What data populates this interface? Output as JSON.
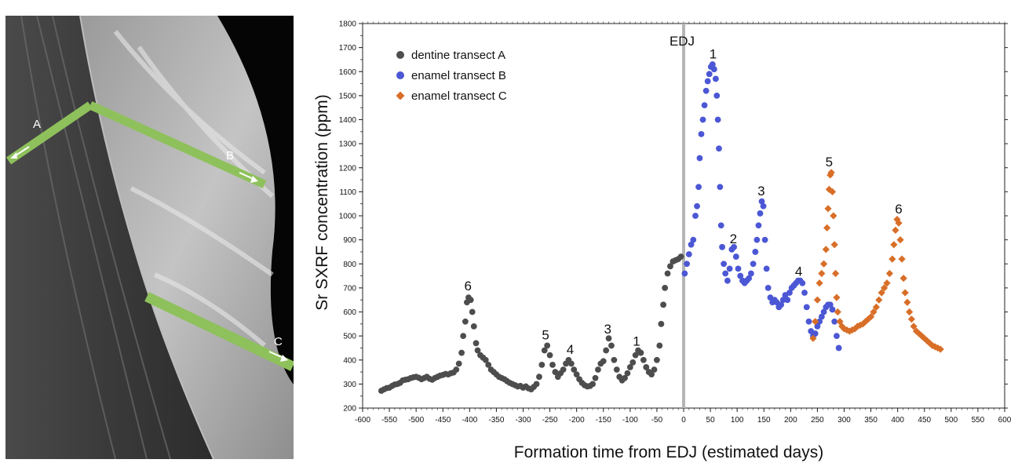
{
  "micrograph": {
    "transects": [
      {
        "label": "A"
      },
      {
        "label": "B"
      },
      {
        "label": "C"
      }
    ]
  },
  "chart_data": {
    "type": "scatter",
    "xlabel": "Formation time from EDJ (estimated days)",
    "ylabel": "Sr SXRF concentration (ppm)",
    "xlim": [
      -600,
      600
    ],
    "ylim": [
      200,
      1800
    ],
    "xticks": [
      -600,
      -550,
      -500,
      -450,
      -400,
      -350,
      -300,
      -250,
      -200,
      -150,
      -100,
      -50,
      0,
      50,
      100,
      150,
      200,
      250,
      300,
      350,
      400,
      450,
      500,
      550,
      600
    ],
    "yticks": [
      200,
      300,
      400,
      500,
      600,
      700,
      800,
      900,
      1000,
      1100,
      1200,
      1300,
      1400,
      1500,
      1600,
      1700,
      1800
    ],
    "grid": false,
    "legend_position": "top-left",
    "reference_line": {
      "x": 0,
      "label": "EDJ"
    },
    "series": [
      {
        "name": "dentine transect A",
        "marker": "circle",
        "color": "#4d4d4d",
        "points": [
          [
            -565,
            272
          ],
          [
            -560,
            278
          ],
          [
            -555,
            283
          ],
          [
            -550,
            285
          ],
          [
            -545,
            292
          ],
          [
            -540,
            298
          ],
          [
            -535,
            300
          ],
          [
            -530,
            305
          ],
          [
            -525,
            315
          ],
          [
            -520,
            318
          ],
          [
            -515,
            320
          ],
          [
            -510,
            325
          ],
          [
            -505,
            328
          ],
          [
            -500,
            330
          ],
          [
            -495,
            326
          ],
          [
            -490,
            320
          ],
          [
            -485,
            325
          ],
          [
            -480,
            330
          ],
          [
            -475,
            322
          ],
          [
            -470,
            318
          ],
          [
            -465,
            325
          ],
          [
            -460,
            330
          ],
          [
            -455,
            335
          ],
          [
            -450,
            338
          ],
          [
            -445,
            342
          ],
          [
            -440,
            340
          ],
          [
            -435,
            345
          ],
          [
            -430,
            348
          ],
          [
            -425,
            360
          ],
          [
            -420,
            385
          ],
          [
            -415,
            430
          ],
          [
            -412,
            500
          ],
          [
            -408,
            560
          ],
          [
            -405,
            640
          ],
          [
            -402,
            660
          ],
          [
            -398,
            650
          ],
          [
            -395,
            600
          ],
          [
            -392,
            540
          ],
          [
            -388,
            470
          ],
          [
            -385,
            440
          ],
          [
            -380,
            420
          ],
          [
            -375,
            410
          ],
          [
            -370,
            400
          ],
          [
            -365,
            380
          ],
          [
            -360,
            360
          ],
          [
            -355,
            350
          ],
          [
            -350,
            340
          ],
          [
            -345,
            330
          ],
          [
            -340,
            325
          ],
          [
            -335,
            320
          ],
          [
            -330,
            312
          ],
          [
            -325,
            305
          ],
          [
            -320,
            300
          ],
          [
            -315,
            295
          ],
          [
            -310,
            290
          ],
          [
            -305,
            292
          ],
          [
            -300,
            285
          ],
          [
            -295,
            290
          ],
          [
            -290,
            282
          ],
          [
            -285,
            278
          ],
          [
            -280,
            288
          ],
          [
            -275,
            300
          ],
          [
            -270,
            330
          ],
          [
            -265,
            380
          ],
          [
            -260,
            440
          ],
          [
            -255,
            460
          ],
          [
            -250,
            420
          ],
          [
            -245,
            380
          ],
          [
            -240,
            350
          ],
          [
            -235,
            330
          ],
          [
            -230,
            345
          ],
          [
            -225,
            360
          ],
          [
            -220,
            385
          ],
          [
            -215,
            400
          ],
          [
            -210,
            385
          ],
          [
            -205,
            360
          ],
          [
            -200,
            340
          ],
          [
            -195,
            320
          ],
          [
            -190,
            305
          ],
          [
            -185,
            295
          ],
          [
            -180,
            290
          ],
          [
            -175,
            292
          ],
          [
            -170,
            300
          ],
          [
            -165,
            325
          ],
          [
            -160,
            360
          ],
          [
            -155,
            385
          ],
          [
            -150,
            395
          ],
          [
            -145,
            440
          ],
          [
            -140,
            490
          ],
          [
            -135,
            460
          ],
          [
            -130,
            400
          ],
          [
            -125,
            360
          ],
          [
            -120,
            330
          ],
          [
            -115,
            315
          ],
          [
            -110,
            325
          ],
          [
            -105,
            345
          ],
          [
            -100,
            370
          ],
          [
            -95,
            390
          ],
          [
            -90,
            420
          ],
          [
            -85,
            440
          ],
          [
            -80,
            430
          ],
          [
            -75,
            400
          ],
          [
            -70,
            370
          ],
          [
            -65,
            350
          ],
          [
            -60,
            340
          ],
          [
            -55,
            360
          ],
          [
            -50,
            400
          ],
          [
            -45,
            460
          ],
          [
            -42,
            550
          ],
          [
            -38,
            630
          ],
          [
            -35,
            700
          ],
          [
            -30,
            760
          ],
          [
            -25,
            790
          ],
          [
            -20,
            810
          ],
          [
            -15,
            815
          ],
          [
            -10,
            820
          ],
          [
            -5,
            830
          ]
        ]
      },
      {
        "name": "enamel transect B",
        "marker": "circle",
        "color": "#4b57d4",
        "points": [
          [
            2,
            760
          ],
          [
            6,
            800
          ],
          [
            10,
            840
          ],
          [
            14,
            880
          ],
          [
            18,
            900
          ],
          [
            22,
            1000
          ],
          [
            25,
            1040
          ],
          [
            28,
            1120
          ],
          [
            30,
            1240
          ],
          [
            33,
            1340
          ],
          [
            36,
            1400
          ],
          [
            39,
            1460
          ],
          [
            42,
            1520
          ],
          [
            45,
            1560
          ],
          [
            48,
            1590
          ],
          [
            51,
            1620
          ],
          [
            54,
            1630
          ],
          [
            57,
            1610
          ],
          [
            60,
            1570
          ],
          [
            62,
            1500
          ],
          [
            64,
            1400
          ],
          [
            66,
            1280
          ],
          [
            68,
            1120
          ],
          [
            70,
            960
          ],
          [
            72,
            870
          ],
          [
            75,
            800
          ],
          [
            78,
            760
          ],
          [
            82,
            730
          ],
          [
            86,
            780
          ],
          [
            90,
            860
          ],
          [
            94,
            870
          ],
          [
            98,
            830
          ],
          [
            102,
            780
          ],
          [
            106,
            750
          ],
          [
            110,
            730
          ],
          [
            114,
            720
          ],
          [
            118,
            730
          ],
          [
            122,
            740
          ],
          [
            126,
            760
          ],
          [
            130,
            800
          ],
          [
            134,
            850
          ],
          [
            137,
            900
          ],
          [
            140,
            960
          ],
          [
            143,
            1010
          ],
          [
            146,
            1060
          ],
          [
            149,
            1040
          ],
          [
            152,
            900
          ],
          [
            155,
            780
          ],
          [
            158,
            700
          ],
          [
            162,
            660
          ],
          [
            166,
            640
          ],
          [
            170,
            650
          ],
          [
            174,
            640
          ],
          [
            178,
            620
          ],
          [
            182,
            630
          ],
          [
            186,
            650
          ],
          [
            190,
            670
          ],
          [
            194,
            650
          ],
          [
            198,
            680
          ],
          [
            202,
            700
          ],
          [
            206,
            710
          ],
          [
            210,
            720
          ],
          [
            214,
            730
          ],
          [
            218,
            730
          ],
          [
            222,
            720
          ],
          [
            226,
            680
          ],
          [
            230,
            620
          ],
          [
            234,
            560
          ],
          [
            238,
            520
          ],
          [
            242,
            500
          ],
          [
            246,
            510
          ],
          [
            250,
            540
          ],
          [
            254,
            560
          ],
          [
            258,
            580
          ],
          [
            262,
            600
          ],
          [
            266,
            620
          ],
          [
            270,
            630
          ],
          [
            274,
            630
          ],
          [
            278,
            610
          ],
          [
            282,
            560
          ],
          [
            286,
            500
          ],
          [
            290,
            450
          ]
        ]
      },
      {
        "name": "enamel transect C",
        "marker": "diamond",
        "color": "#d86e28",
        "points": [
          [
            242,
            490
          ],
          [
            246,
            560
          ],
          [
            250,
            650
          ],
          [
            254,
            720
          ],
          [
            258,
            760
          ],
          [
            262,
            800
          ],
          [
            266,
            860
          ],
          [
            268,
            950
          ],
          [
            270,
            1030
          ],
          [
            272,
            1110
          ],
          [
            274,
            1170
          ],
          [
            276,
            1180
          ],
          [
            278,
            1100
          ],
          [
            280,
            1000
          ],
          [
            282,
            880
          ],
          [
            284,
            760
          ],
          [
            286,
            660
          ],
          [
            288,
            600
          ],
          [
            292,
            560
          ],
          [
            296,
            540
          ],
          [
            300,
            530
          ],
          [
            305,
            525
          ],
          [
            310,
            520
          ],
          [
            315,
            525
          ],
          [
            320,
            530
          ],
          [
            325,
            540
          ],
          [
            330,
            545
          ],
          [
            335,
            550
          ],
          [
            340,
            560
          ],
          [
            345,
            570
          ],
          [
            350,
            580
          ],
          [
            355,
            600
          ],
          [
            360,
            620
          ],
          [
            365,
            650
          ],
          [
            370,
            680
          ],
          [
            375,
            700
          ],
          [
            380,
            720
          ],
          [
            385,
            760
          ],
          [
            390,
            820
          ],
          [
            393,
            880
          ],
          [
            396,
            940
          ],
          [
            399,
            985
          ],
          [
            402,
            970
          ],
          [
            405,
            900
          ],
          [
            408,
            820
          ],
          [
            411,
            740
          ],
          [
            414,
            680
          ],
          [
            418,
            640
          ],
          [
            422,
            600
          ],
          [
            426,
            570
          ],
          [
            430,
            540
          ],
          [
            435,
            520
          ],
          [
            440,
            510
          ],
          [
            445,
            500
          ],
          [
            450,
            490
          ],
          [
            455,
            480
          ],
          [
            460,
            470
          ],
          [
            465,
            460
          ],
          [
            470,
            455
          ],
          [
            475,
            450
          ],
          [
            480,
            445
          ]
        ]
      }
    ],
    "annotations": [
      {
        "text": "1",
        "x": 55,
        "y": 1655,
        "color": "#111"
      },
      {
        "text": "2",
        "x": 93,
        "y": 885,
        "color": "#111"
      },
      {
        "text": "3",
        "x": 145,
        "y": 1085,
        "color": "#111"
      },
      {
        "text": "4",
        "x": 215,
        "y": 750,
        "color": "#111"
      },
      {
        "text": "5",
        "x": 272,
        "y": 1205,
        "color": "#111"
      },
      {
        "text": "6",
        "x": 402,
        "y": 1010,
        "color": "#111"
      },
      {
        "text": "6",
        "x": -403,
        "y": 690,
        "color": "#111"
      },
      {
        "text": "5",
        "x": -258,
        "y": 485,
        "color": "#111"
      },
      {
        "text": "4",
        "x": -212,
        "y": 425,
        "color": "#111"
      },
      {
        "text": "3",
        "x": -142,
        "y": 510,
        "color": "#111"
      },
      {
        "text": "1",
        "x": -88,
        "y": 460,
        "color": "#111"
      }
    ]
  }
}
